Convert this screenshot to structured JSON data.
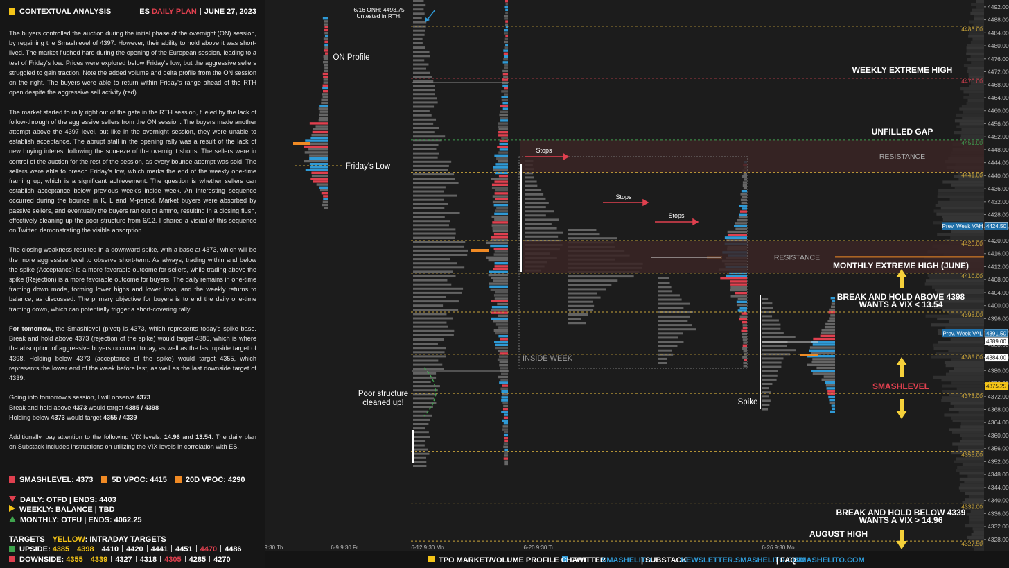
{
  "header": {
    "title": "CONTEXTUAL ANALYSIS",
    "symbol": "ES",
    "plan": "DAILY PLAN",
    "date": "JUNE 27, 2023"
  },
  "analysis": {
    "paragraphs": [
      [
        "The buyers controlled the auction during the initial phase of the overnight (ON) session, by regaining the Smashlevel of 4397. However, their ability to hold above it was short-lived. The market flushed hard during the opening of the European session, leading to a test of Friday's low. Prices were explored below Friday's low, but the aggressive sellers struggled to gain traction. Note the added volume and delta profile from the ON session on the right. The buyers were able to return within Friday's range ahead of the RTH open despite the aggressive sell activity (red)."
      ],
      [
        "The market started to rally right out of the gate in the RTH session, fueled by the lack of follow-through of the aggressive sellers from the ON session. The buyers made another attempt above the 4397 level, but like in the overnight session, they were unable to establish acceptance. The abrupt stall in the opening rally was a result of the lack of new buying interest following the squeeze of the overnight shorts. The sellers were in control of the auction for the rest of the session, as every bounce attempt was sold. The sellers were able to breach Friday's low, which marks the end of the weekly one-time framing up, which is a significant achievement. The question is whether sellers can establish acceptance below previous week's inside week. An interesting sequence occurred during the bounce in K, L and M-period. Market buyers were absorbed by passive sellers, and eventually the buyers ran out of ammo, resulting in a closing flush, effectively cleaning up the poor structure from 6/12. I shared a visual of this sequence on Twitter, demonstrating the visible absorption."
      ],
      [
        "The closing weakness resulted in a downward spike, with a base at 4373, which will be the more aggressive level to observe short-term. As always, trading within and below the spike (Acceptance) is a more favorable outcome for sellers, while trading above the spike (Rejection) is a more favorable outcome for buyers. The daily remains in one-time framing down mode, forming lower highs and lower lows, and the weekly returns to balance, as discussed. The primary objective for buyers is to end the daily one-time framing down, which can potentially trigger a short-covering rally."
      ],
      [
        {
          "text": "For tomorrow",
          "bold": true
        },
        ", the Smashlevel (pivot) is 4373, which represents today's spike base. Break and hold above 4373 (rejection of the spike) would target 4385, which is where the absorption of aggressive buyers occurred today, as well as the last upside target of 4398. Holding below 4373 (acceptance of the spike) would target 4355, which represents the lower end of the week before last, as well as the last downside target of 4339."
      ]
    ],
    "watch": [
      [
        "Going into tomorrow's session, I will observe ",
        {
          "text": "4373",
          "bold": true
        },
        "."
      ],
      [
        "Break and hold above ",
        {
          "text": "4373",
          "bold": true
        },
        " would target ",
        {
          "text": "4385 / 4398",
          "bold": true
        }
      ],
      [
        "Holding below ",
        {
          "text": "4373",
          "bold": true
        },
        " would target ",
        {
          "text": "4355 / 4339",
          "bold": true
        }
      ]
    ],
    "vix": [
      "Additionally, pay attention to the following VIX levels: ",
      {
        "text": "14.96",
        "bold": true
      },
      " and ",
      {
        "text": "13.54",
        "bold": true
      },
      ". The daily plan on Substack includes instructions on utilizing the VIX levels in correlation with ES."
    ]
  },
  "legend": [
    {
      "label": "SMASHLEVEL: 4373",
      "color": "#e0404f"
    },
    {
      "label": "5D VPOC: 4415",
      "value": 4415,
      "color": "#f08a24"
    },
    {
      "label": "20D VPOC: 4290",
      "color": "#f08a24"
    }
  ],
  "status": [
    {
      "text": "DAILY: OTFD | ENDS: 4403",
      "color": "#e0404f",
      "shape": "down"
    },
    {
      "text": "WEEKLY: BALANCE | TBD",
      "color": "#f5c518",
      "shape": "right"
    },
    {
      "text": "MONTHLY: OTFU | ENDS: 4062.25",
      "color": "#3fa34d",
      "shape": "up"
    }
  ],
  "targets": {
    "title": "TARGETS",
    "yellow": "YELLOW",
    "note": ": INTRADAY TARGETS",
    "upside": {
      "label": "UPSIDE:",
      "color": "#3fa34d",
      "items": [
        {
          "value": 4385,
          "color": "#f5c518"
        },
        {
          "value": 4398,
          "color": "#f5c518"
        },
        {
          "value": 4410,
          "color": "#ffffff"
        },
        {
          "value": 4420,
          "color": "#ffffff"
        },
        {
          "value": 4441,
          "color": "#ffffff"
        },
        {
          "value": 4451,
          "color": "#ffffff"
        },
        {
          "value": 4470,
          "color": "#e0404f"
        },
        {
          "value": 4486,
          "color": "#ffffff"
        }
      ]
    },
    "downside": {
      "label": "DOWNSIDE:",
      "color": "#e0404f",
      "items": [
        {
          "value": 4355,
          "color": "#f5c518"
        },
        {
          "value": 4339,
          "color": "#f5c518"
        },
        {
          "value": 4327,
          "color": "#ffffff"
        },
        {
          "value": 4318,
          "color": "#ffffff"
        },
        {
          "value": 4305,
          "color": "#e0404f"
        },
        {
          "value": 4285,
          "color": "#ffffff"
        },
        {
          "value": 4270,
          "color": "#ffffff"
        }
      ]
    }
  },
  "chart_data": {
    "type": "market-profile",
    "ylim": [
      4325.4,
      4494.1
    ],
    "yticks": [
      {
        "value": 4492,
        "label": "4492.00"
      },
      {
        "value": 4488,
        "label": "4488.00"
      },
      {
        "value": 4484,
        "label": "4484.00"
      },
      {
        "value": 4480,
        "label": "4480.00"
      },
      {
        "value": 4476,
        "label": "4476.00"
      },
      {
        "value": 4472,
        "label": "4472.00"
      },
      {
        "value": 4468,
        "label": "4468.00"
      },
      {
        "value": 4464,
        "label": "4464.00"
      },
      {
        "value": 4460,
        "label": "4460.00"
      },
      {
        "value": 4456,
        "label": "4456.00"
      },
      {
        "value": 4452,
        "label": "4452.00"
      },
      {
        "value": 4448,
        "label": "4448.00"
      },
      {
        "value": 4444,
        "label": "4444.00"
      },
      {
        "value": 4440,
        "label": "4440.00"
      },
      {
        "value": 4436,
        "label": "4436.00"
      },
      {
        "value": 4432,
        "label": "4432.00"
      },
      {
        "value": 4428,
        "label": "4428.00"
      },
      {
        "value": 4424,
        "label": "4424.00"
      },
      {
        "value": 4420,
        "label": "4420.00"
      },
      {
        "value": 4416,
        "label": "4416.00"
      },
      {
        "value": 4412,
        "label": "4412.00"
      },
      {
        "value": 4408,
        "label": "4408.00"
      },
      {
        "value": 4404,
        "label": "4404.00"
      },
      {
        "value": 4400,
        "label": "4400.00"
      },
      {
        "value": 4396,
        "label": "4396.00"
      },
      {
        "value": 4392,
        "label": "4392.00"
      },
      {
        "value": 4388,
        "label": "4388.00"
      },
      {
        "value": 4384,
        "label": "4384.00"
      },
      {
        "value": 4380,
        "label": "4380.00"
      },
      {
        "value": 4376,
        "label": "4376.00"
      },
      {
        "value": 4372,
        "label": "4372.00"
      },
      {
        "value": 4368,
        "label": "4368.00"
      },
      {
        "value": 4364,
        "label": "4364.00"
      },
      {
        "value": 4360,
        "label": "4360.00"
      },
      {
        "value": 4356,
        "label": "4356.00"
      },
      {
        "value": 4352,
        "label": "4352.00"
      },
      {
        "value": 4348,
        "label": "4348.00"
      },
      {
        "value": 4344,
        "label": "4344.00"
      },
      {
        "value": 4340,
        "label": "4340.00"
      },
      {
        "value": 4336,
        "label": "4336.00"
      },
      {
        "value": 4332,
        "label": "4332.00"
      },
      {
        "value": 4328,
        "label": "4328.00"
      }
    ],
    "levels": [
      {
        "value": 4486,
        "label": "4486.00",
        "color": "#c9a43a"
      },
      {
        "value": 4470,
        "label": "4470.00",
        "color": "#d0404f"
      },
      {
        "value": 4451,
        "label": "4451.00",
        "color": "#3f9f50"
      },
      {
        "value": 4441,
        "label": "4441.00",
        "color": "#c9a43a"
      },
      {
        "value": 4420,
        "label": "4420.00",
        "color": "#c9a43a"
      },
      {
        "value": 4410,
        "label": "4410.00",
        "color": "#c9a43a"
      },
      {
        "value": 4398,
        "label": "4398.00",
        "color": "#c9a43a"
      },
      {
        "value": 4385,
        "label": "4385.00",
        "color": "#c9a43a"
      },
      {
        "value": 4373,
        "label": "4373.00",
        "color": "#c9a43a"
      },
      {
        "value": 4355,
        "label": "4355.00",
        "color": "#c9a43a"
      },
      {
        "value": 4339,
        "label": "4339.00",
        "color": "#c9a43a"
      },
      {
        "value": 4327.5,
        "label": "4327.50",
        "color": "#c9a43a"
      }
    ],
    "zones": [
      {
        "label": "RESISTANCE",
        "range": [
          4441,
          4451
        ]
      },
      {
        "label": "RESISTANCE",
        "range": [
          4410,
          4420
        ]
      }
    ],
    "price_boxes": [
      {
        "name": "Prev. Week VAH",
        "value": 4424.5,
        "label": "4424.50",
        "color": "#1f6fa8"
      },
      {
        "name": "Prev. Week VAL",
        "value": 4391.5,
        "label": "4391.50",
        "color": "#1f6fa8"
      },
      {
        "value": 4389,
        "label": "4389.00",
        "color": "#ffffff"
      },
      {
        "value": 4384,
        "label": "4384.00",
        "color": "#ffffff"
      },
      {
        "value": 4375.25,
        "label": "4375.25",
        "color": "#f5c518"
      }
    ],
    "x_labels": [
      "9:30 Th",
      "6-9 9:30 Fr",
      "6-12 9:30 Mo",
      "6-20 9:30 Tu",
      "6-26 9:30 Mo"
    ],
    "annotations": {
      "onh": "6/16 ONH: 4493.75",
      "onh_note": "Untested in RTH.",
      "on_profile": "ON Profile",
      "fridays_low": "Friday's Low",
      "poor_structure": [
        "Poor structure",
        "cleaned up!"
      ],
      "stops": [
        "Stops",
        "Stops",
        "Stops"
      ],
      "inside_week": "INSIDE WEEK",
      "weekly_extreme_high": "WEEKLY EXTREME HIGH",
      "unfilled_gap": "UNFILLED GAP",
      "monthly_extreme_high": "MONTHLY EXTREME HIGH (JUNE)",
      "break_above": [
        "BREAK AND HOLD ABOVE 4398",
        "WANTS A VIX < 13.54"
      ],
      "smashlevel": "SMASHLEVEL",
      "spike": "Spike",
      "break_below": [
        "BREAK AND HOLD BELOW 4339",
        "WANTS A VIX > 14.96"
      ],
      "august_high": "AUGUST HIGH"
    }
  },
  "footer": [
    {
      "text": "TPO MARKET/VOLUME PROFILE CHART",
      "color": "#ffffff"
    },
    {
      "text": "TWITTER",
      "color": "#ffffff"
    },
    {
      "text": "SMASHELITO",
      "color": "#2f9ad6"
    },
    {
      "text": "| SUBSTACK",
      "color": "#ffffff"
    },
    {
      "text": "NEWSLETTER.SMASHELITO.COM",
      "color": "#2f9ad6"
    },
    {
      "text": "| FAQ",
      "color": "#ffffff"
    },
    {
      "text": "SMASHELITO.COM",
      "color": "#2f9ad6"
    }
  ]
}
